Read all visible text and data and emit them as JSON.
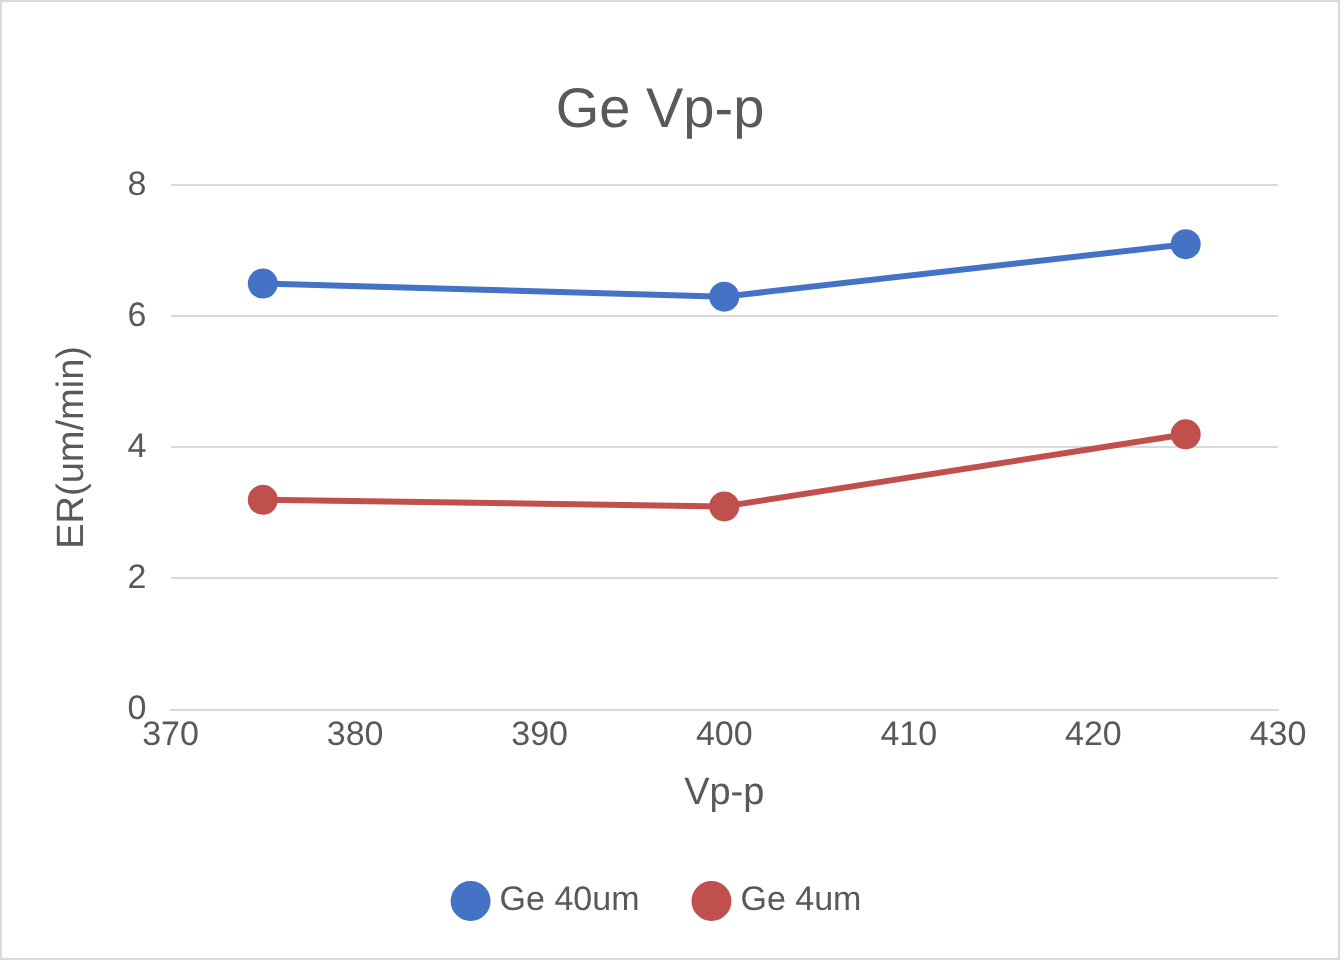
{
  "chart_data": {
    "type": "line",
    "title": "Ge Vp-p",
    "xlabel": "Vp-p",
    "ylabel": "ER(um/min)",
    "x": [
      375,
      400,
      425
    ],
    "series": [
      {
        "name": "Ge 40um",
        "color": "#4472c4",
        "values": [
          6.5,
          6.3,
          7.1
        ]
      },
      {
        "name": "Ge 4um",
        "color": "#c0504d",
        "values": [
          3.2,
          3.1,
          4.2
        ]
      }
    ],
    "xlim": [
      370,
      430
    ],
    "xticks": [
      370,
      380,
      390,
      400,
      410,
      420,
      430
    ],
    "ylim": [
      0,
      8
    ],
    "yticks": [
      0,
      2,
      4,
      6,
      8
    ],
    "grid": "y",
    "legend": "bottom",
    "marker": "circle",
    "line_style": "solid"
  }
}
